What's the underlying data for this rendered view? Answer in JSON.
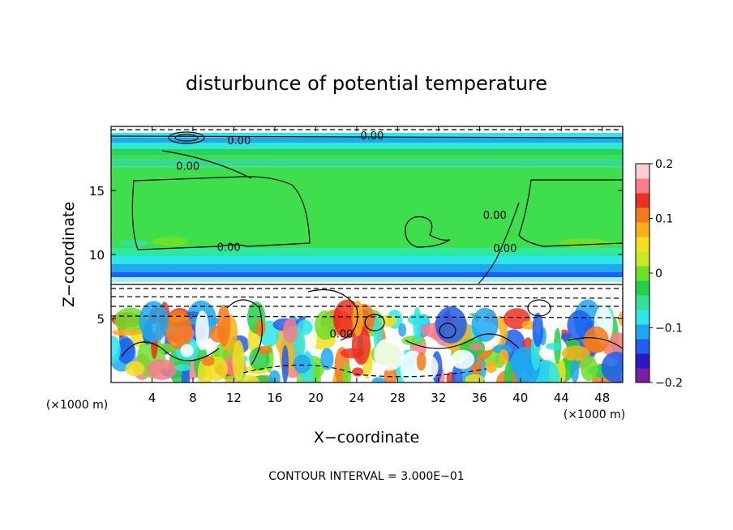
{
  "chart_data": {
    "type": "heatmap",
    "title": "disturbunce of potential temperature",
    "xlabel": "X−coordinate",
    "ylabel": "Z−coordinate",
    "x_unit_left": "(×1000 m)",
    "x_unit_right": "(×1000 m)",
    "footer": "CONTOUR INTERVAL = 3.000E−01",
    "xlim": [
      0,
      50
    ],
    "ylim": [
      0,
      20
    ],
    "x_ticks": [
      4,
      8,
      12,
      16,
      20,
      24,
      28,
      32,
      36,
      40,
      44,
      48
    ],
    "y_ticks": [
      5,
      10,
      15
    ],
    "contour_labels": [
      {
        "text": "0.00",
        "x": 11.5,
        "y": 10.3
      },
      {
        "text": "0.00",
        "x": 7.5,
        "y": 16.6
      },
      {
        "text": "0.00",
        "x": 12.5,
        "y": 18.6
      },
      {
        "text": "0.00",
        "x": 25.5,
        "y": 19.0
      },
      {
        "text": "0.00",
        "x": 22.5,
        "y": 3.5
      },
      {
        "text": "0.00",
        "x": 37.5,
        "y": 12.8
      },
      {
        "text": "0.00",
        "x": 38.5,
        "y": 10.2
      }
    ],
    "colorbar": {
      "range": [
        -0.2,
        0.2
      ],
      "tick_values": [
        0.2,
        0.1,
        0,
        -0.1,
        -0.2
      ],
      "tick_labels": [
        "0.2",
        "0.1",
        "0",
        "−0.1",
        "−0.2"
      ],
      "colors": [
        "#7a1fa2",
        "#2b18c8",
        "#1f5ef0",
        "#1fa8f0",
        "#2ce8e8",
        "#36e09a",
        "#24d048",
        "#6de02a",
        "#c8e828",
        "#f0e020",
        "#f8b018",
        "#f57a1a",
        "#ee3020",
        "#f87c8c",
        "#fcd0d0"
      ]
    }
  }
}
